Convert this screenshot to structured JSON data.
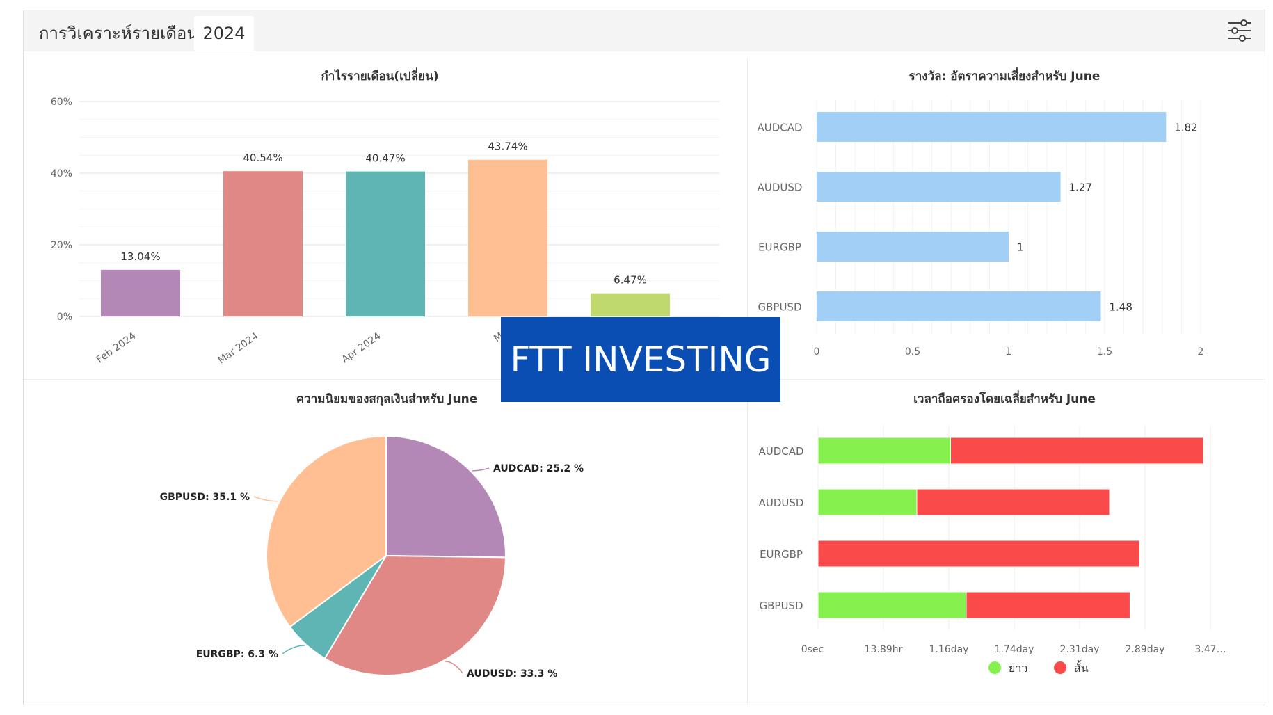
{
  "tabs": {
    "analysis_label": "การวิเคราะห์รายเดือน",
    "year_label": "2024"
  },
  "header": {
    "settings_icon": "sliders-icon"
  },
  "banner": {
    "text": "FTT INVESTING",
    "color": "#0a4db3"
  },
  "chart_data": [
    {
      "id": "monthly",
      "type": "bar",
      "title": "กำไรรายเดือน(เปลี่ยน)",
      "categories": [
        "Feb 2024",
        "Mar 2024",
        "Apr 2024",
        "M",
        ""
      ],
      "values": [
        13.04,
        40.54,
        40.47,
        43.74,
        6.47
      ],
      "value_labels": [
        "13.04%",
        "40.54%",
        "40.47%",
        "43.74%",
        "6.47%"
      ],
      "colors": [
        "#b488b6",
        "#e08886",
        "#5eb5b3",
        "#ffbf93",
        "#bfd96f"
      ],
      "ylim": [
        0,
        60
      ],
      "yticks": [
        "0%",
        "20%",
        "40%",
        "60%"
      ],
      "grid": true
    },
    {
      "id": "rr",
      "type": "bar",
      "orientation": "horizontal",
      "title": "รางวัล: อัตราความเสี่ยงสำหรับ June",
      "categories": [
        "AUDCAD",
        "AUDUSD",
        "EURGBP",
        "GBPUSD"
      ],
      "values": [
        1.82,
        1.27,
        1,
        1.48
      ],
      "value_labels": [
        "1.82",
        "1.27",
        "1",
        "1.48"
      ],
      "color": "#a2cff6",
      "xlim": [
        0,
        2
      ],
      "xticks": [
        "0",
        "0.5",
        "1",
        "1.5",
        "2"
      ],
      "grid": true
    },
    {
      "id": "pie",
      "type": "pie",
      "title": "ความนิยมของสกุลเงินสำหรับ June",
      "slices": [
        {
          "label": "AUDCAD: 25.2 %",
          "value": 25.2,
          "color": "#b488b6"
        },
        {
          "label": "AUDUSD: 33.3 %",
          "value": 33.3,
          "color": "#e08886"
        },
        {
          "label": "EURGBP: 6.3 %",
          "value": 6.3,
          "color": "#5eb5b3"
        },
        {
          "label": "GBPUSD: 35.1 %",
          "value": 35.1,
          "color": "#ffbf93"
        }
      ]
    },
    {
      "id": "hold",
      "type": "bar",
      "orientation": "horizontal",
      "stacked": true,
      "title": "เวลาถือครองโดยเฉลี่ยสำหรับ June",
      "categories": [
        "AUDCAD",
        "AUDUSD",
        "EURGBP",
        "GBPUSD"
      ],
      "series": [
        {
          "name": "ยาว",
          "color": "#86f04f",
          "values": [
            1.1,
            0.82,
            0,
            1.23
          ]
        },
        {
          "name": "สั้น",
          "color": "#fb4a4a",
          "values": [
            2.1,
            1.6,
            2.67,
            1.36
          ]
        }
      ],
      "xlim": [
        0,
        3.5
      ],
      "xticks": [
        "0sec",
        "13.89hr",
        "1.16day",
        "1.74day",
        "2.31day",
        "2.89day",
        "3.47…"
      ],
      "legend": "bottom",
      "grid": true
    }
  ]
}
